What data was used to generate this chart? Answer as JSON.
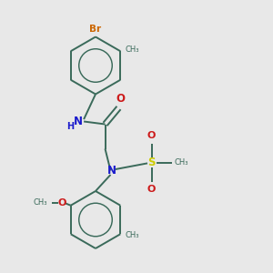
{
  "bg_color": "#e8e8e8",
  "bond_color": "#3a6a5a",
  "N_color": "#1a1acc",
  "O_color": "#cc1a1a",
  "S_color": "#cccc00",
  "Br_color": "#cc6600",
  "line_width": 1.4,
  "fig_size": [
    3.0,
    3.0
  ],
  "dpi": 100,
  "xlim": [
    0,
    10
  ],
  "ylim": [
    0,
    10
  ]
}
